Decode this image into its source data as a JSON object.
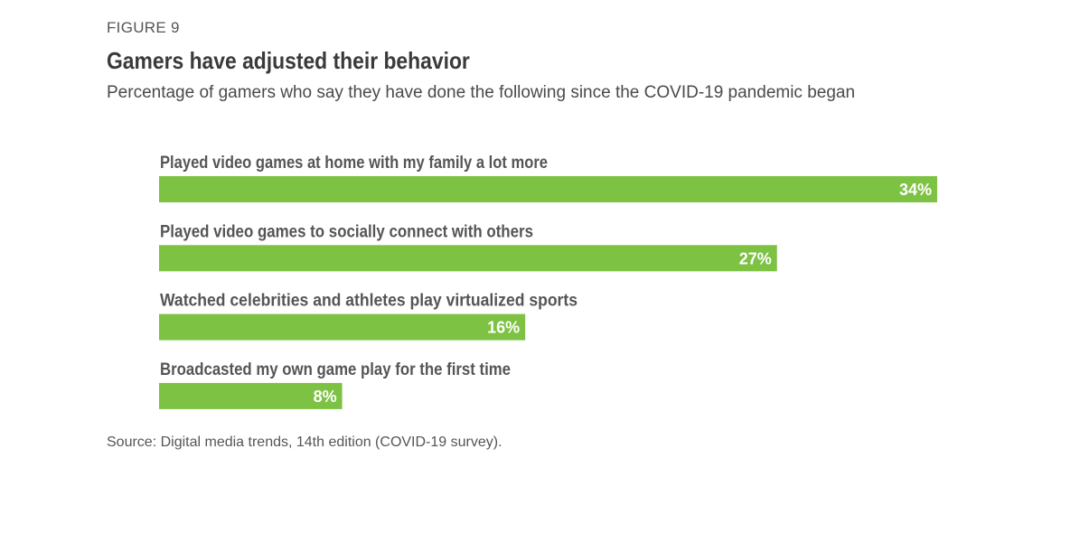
{
  "header": {
    "figure_label": "FIGURE 9",
    "title": "Gamers have adjusted their behavior",
    "subtitle": "Percentage of gamers who say they have done the following since the COVID-19 pandemic began"
  },
  "chart_data": {
    "type": "bar",
    "orientation": "horizontal",
    "categories": [
      "Played video games at home with my family a lot more",
      "Played video games to socially connect with others",
      "Watched celebrities and athletes play virtualized sports",
      "Broadcasted my own game play for the first time"
    ],
    "values": [
      34,
      27,
      16,
      8
    ],
    "value_labels": [
      "34%",
      "27%",
      "16%",
      "8%"
    ],
    "unit": "%",
    "title": "Gamers have adjusted their behavior",
    "xlabel": "",
    "ylabel": "",
    "xlim": [
      0,
      34
    ],
    "grid": false,
    "legend": "none",
    "bar_color": "#7dc242",
    "label_color": "#ffffff"
  },
  "footer": {
    "source": "Source: Digital media trends, 14th edition (COVID-19 survey)."
  }
}
